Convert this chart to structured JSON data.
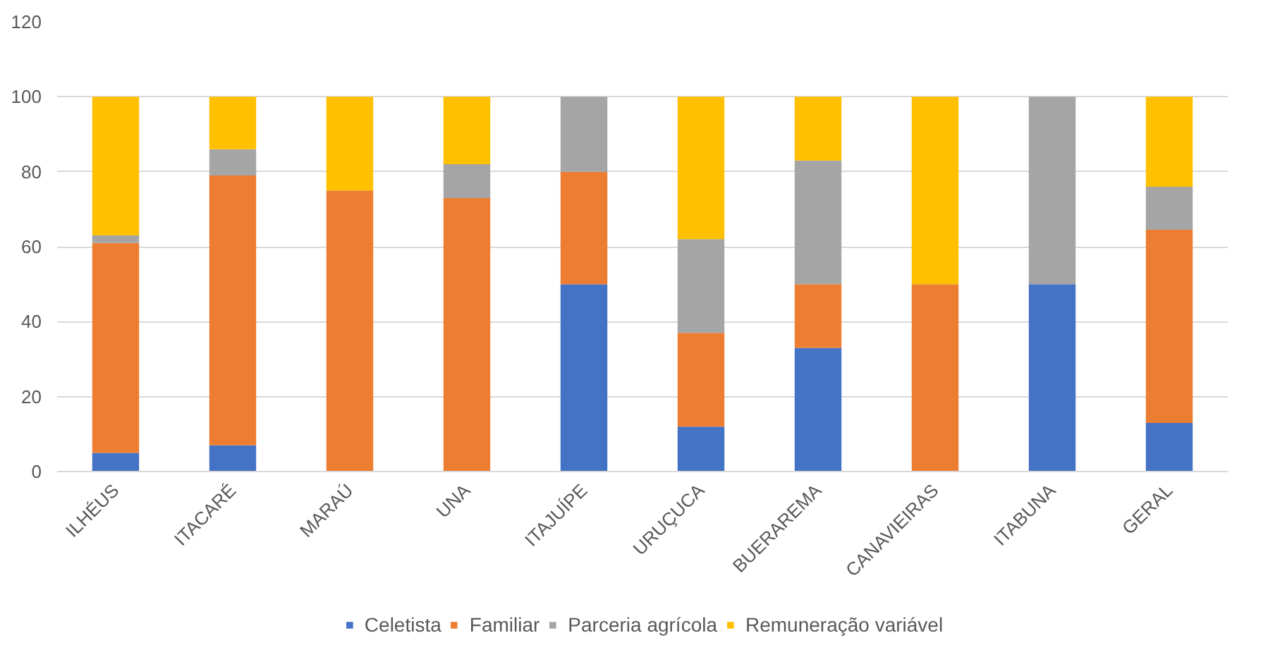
{
  "chart_data": {
    "type": "bar",
    "stacked": true,
    "categories": [
      "ILHÉUS",
      "ITACARÉ",
      "MARAÚ",
      "UNA",
      "ITAJUÍPE",
      "URUÇUCA",
      "BUERAREMA",
      "CANAVIEIRAS",
      "ITABUNA",
      "GERAL"
    ],
    "series": [
      {
        "name": "Celetista",
        "color": "#4472c4",
        "values": [
          5,
          7,
          0,
          0,
          50,
          12,
          33,
          0,
          50,
          13
        ]
      },
      {
        "name": "Familiar",
        "color": "#ed7d31",
        "values": [
          56,
          72,
          75,
          73,
          30,
          25,
          17,
          50,
          0,
          51.5
        ]
      },
      {
        "name": "Parceria agrícola",
        "color": "#a5a5a5",
        "values": [
          2,
          7,
          0,
          9,
          20,
          25,
          33,
          0,
          50,
          11.5
        ]
      },
      {
        "name": "Remuneração variável",
        "color": "#ffc000",
        "values": [
          37,
          14,
          25,
          18,
          0,
          38,
          17,
          50,
          0,
          24
        ]
      }
    ],
    "ylim": [
      0,
      120
    ],
    "yticks": [
      0,
      20,
      40,
      60,
      80,
      100,
      120
    ],
    "grid": "y",
    "legend": "bottom"
  }
}
